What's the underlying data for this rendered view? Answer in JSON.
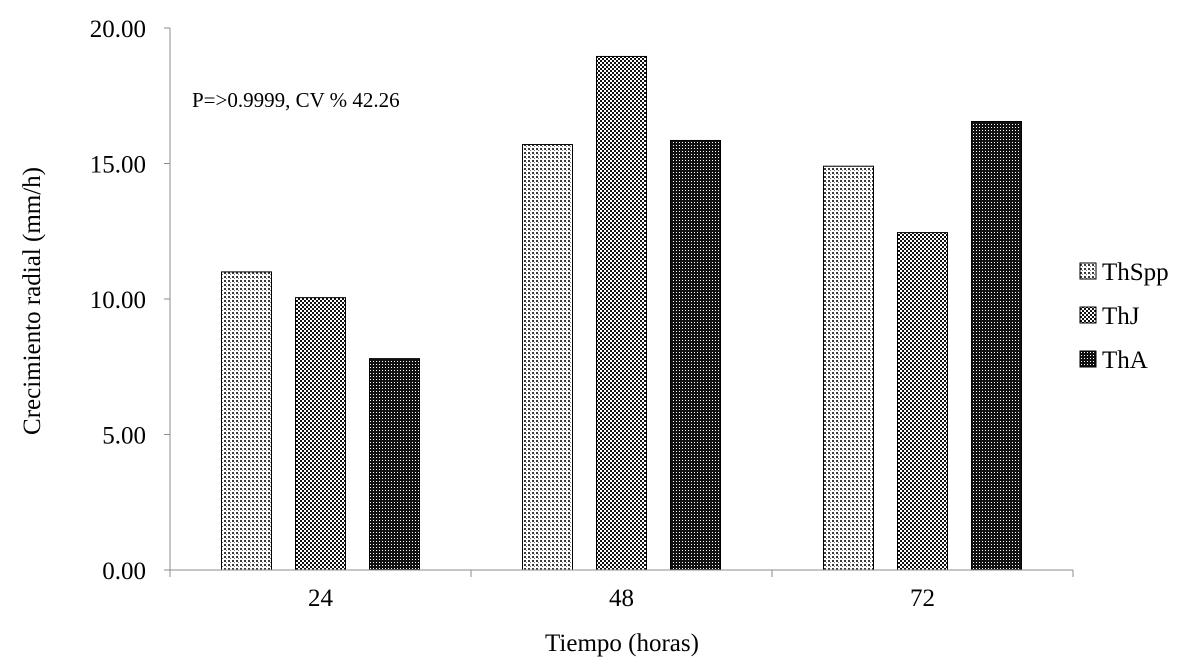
{
  "chart_data": {
    "type": "bar",
    "title": "",
    "annotation": "P=>0.9999, CV % 42.26",
    "xlabel": "Tiempo (horas)",
    "ylabel": "Crecimiento radial (mm/h)",
    "categories": [
      "24",
      "48",
      "72"
    ],
    "ylim": [
      0,
      20
    ],
    "yticks": [
      "0.00",
      "5.00",
      "10.00",
      "15.00",
      "20.00"
    ],
    "grid": false,
    "legend_position": "right",
    "series": [
      {
        "name": "ThSpp",
        "values": [
          11.0,
          15.7,
          14.9
        ],
        "pattern": "sparse-dots"
      },
      {
        "name": "ThJ",
        "values": [
          10.05,
          18.95,
          12.45
        ],
        "pattern": "checker"
      },
      {
        "name": "ThA",
        "values": [
          7.8,
          15.85,
          16.55
        ],
        "pattern": "dense-dots"
      }
    ]
  }
}
